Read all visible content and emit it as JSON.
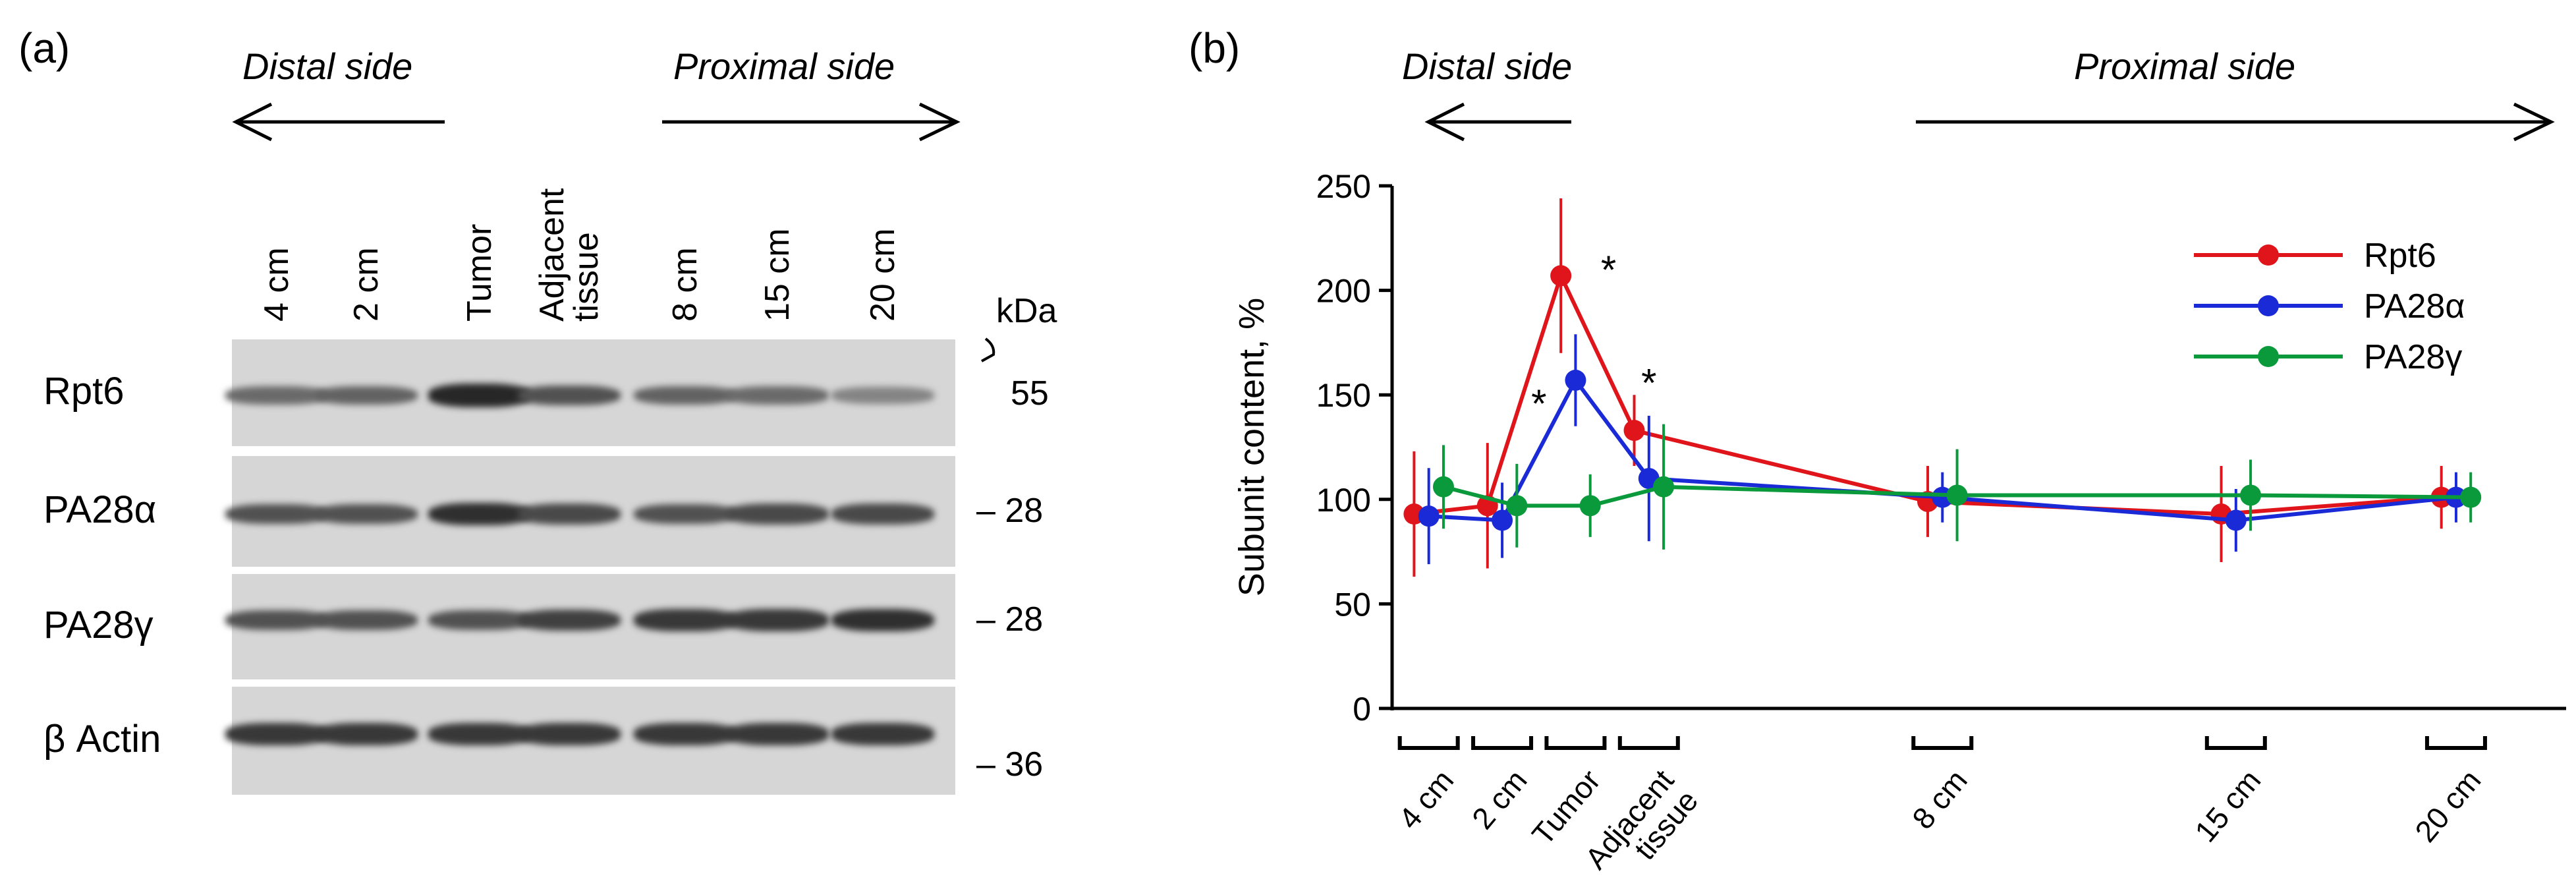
{
  "panel_a": {
    "label": "(a)",
    "distal": "Distal side",
    "proximal": "Proximal side",
    "lanes": [
      "4 cm",
      "2 cm",
      "Tumor",
      "Adjacent tissue",
      "8 cm",
      "15 cm",
      "20 cm"
    ],
    "lane_line1": [
      "4 cm",
      "2 cm",
      "Tumor",
      "Adjacent",
      "8 cm",
      "15 cm",
      "20 cm"
    ],
    "lane_line2": [
      "",
      "",
      "",
      "tissue",
      "",
      "",
      ""
    ],
    "kda_unit": "kDa",
    "rows": [
      {
        "name": "Rpt6",
        "marker": "55",
        "intensity": [
          0.55,
          0.6,
          0.95,
          0.7,
          0.6,
          0.55,
          0.4
        ]
      },
      {
        "name": "PA28α",
        "marker": "– 28",
        "intensity": [
          0.7,
          0.7,
          0.9,
          0.75,
          0.7,
          0.75,
          0.75
        ]
      },
      {
        "name": "PA28γ",
        "marker": "– 28",
        "intensity": [
          0.7,
          0.7,
          0.7,
          0.8,
          0.85,
          0.85,
          0.9
        ]
      },
      {
        "name": "β Actin",
        "marker": "– 36",
        "intensity": [
          0.85,
          0.85,
          0.85,
          0.85,
          0.85,
          0.85,
          0.85
        ]
      }
    ]
  },
  "panel_b": {
    "label": "(b)",
    "distal": "Distal side",
    "proximal": "Proximal side"
  },
  "chart_data": {
    "type": "line",
    "title": "",
    "ylabel": "Subunit content, %",
    "xlabel": "",
    "ylim": [
      0,
      250
    ],
    "yticks": [
      0,
      50,
      100,
      150,
      200,
      250
    ],
    "categories": [
      "4 cm",
      "2 cm",
      "Tumor",
      "Adjacent tissue",
      "8 cm",
      "15 cm",
      "20 cm"
    ],
    "category_line1": [
      "4 cm",
      "2 cm",
      "Tumor",
      "Adjacent",
      "8 cm",
      "15 cm",
      "20 cm"
    ],
    "category_line2": [
      "",
      "",
      "",
      "tissue",
      "",
      "",
      ""
    ],
    "x_positions": [
      0.5,
      1.5,
      2.5,
      3.5,
      7.5,
      11.5,
      14.5
    ],
    "xlim": [
      0,
      16
    ],
    "series": [
      {
        "name": "Rpt6",
        "color": "#e0151b",
        "offset": -0.2,
        "values": [
          93,
          97,
          207,
          133,
          99,
          93,
          101
        ],
        "errors": [
          30,
          30,
          37,
          17,
          17,
          23,
          15
        ]
      },
      {
        "name": "PA28α",
        "color": "#1a2ad6",
        "offset": 0.0,
        "values": [
          92,
          90,
          157,
          110,
          101,
          90,
          101
        ],
        "errors": [
          23,
          18,
          22,
          30,
          12,
          15,
          12
        ]
      },
      {
        "name": "PA28γ",
        "color": "#0a9a3c",
        "offset": 0.2,
        "values": [
          106,
          97,
          97,
          106,
          102,
          102,
          101
        ],
        "errors": [
          20,
          20,
          15,
          30,
          22,
          17,
          12
        ]
      }
    ],
    "annotations": [
      {
        "text": "*",
        "x": 2.5,
        "y": 214,
        "dx": 0.45
      },
      {
        "text": "*",
        "x": 2.5,
        "y": 150,
        "dx": -0.5
      },
      {
        "text": "*",
        "x": 3.5,
        "y": 160,
        "dx": 0.0
      }
    ],
    "legend": "top-right"
  }
}
